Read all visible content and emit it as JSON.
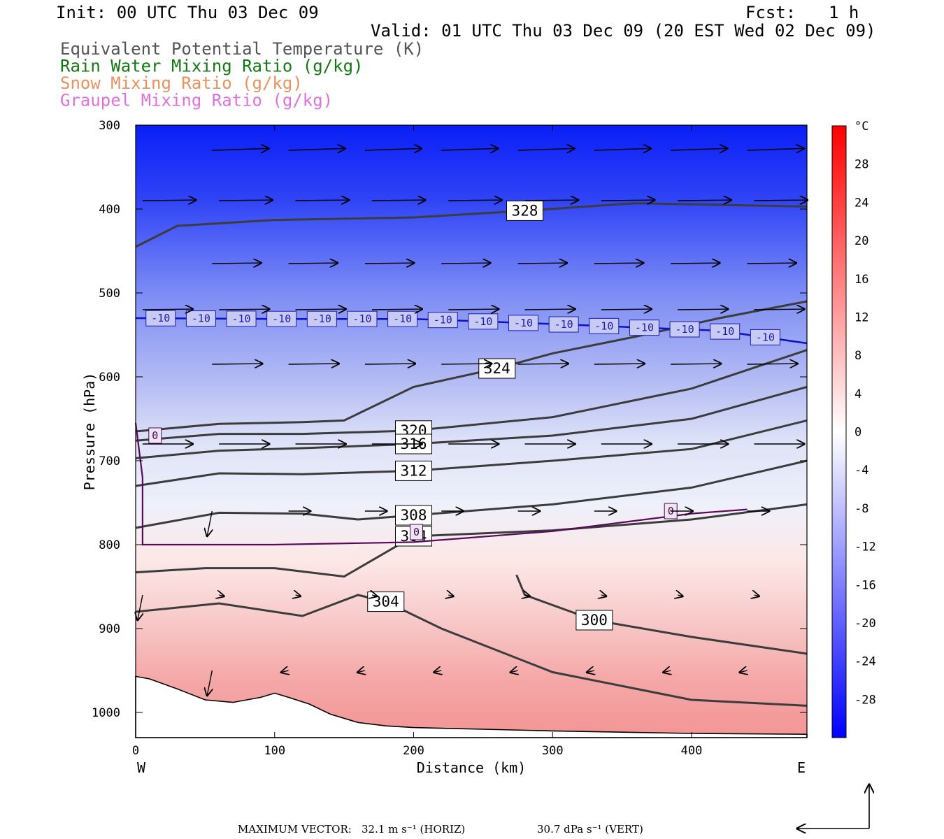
{
  "header": {
    "init": "Init: 00 UTC Thu 03 Dec 09",
    "fcst_label": "Fcst:",
    "fcst_value": "1 h",
    "valid": "Valid: 01 UTC Thu 03 Dec 09 (20 EST Wed 02 Dec 09)"
  },
  "legend": [
    {
      "text": "Equivalent Potential Temperature (K)",
      "color": "#555555"
    },
    {
      "text": "Rain Water Mixing Ratio (g/kg)",
      "color": "#127812"
    },
    {
      "text": "Snow Mixing Ratio (g/kg)",
      "color": "#e8915c"
    },
    {
      "text": "Graupel Mixing Ratio (g/kg)",
      "color": "#e070e0"
    }
  ],
  "colorbar": {
    "unit": "°C",
    "labels": [
      "28",
      "24",
      "20",
      "16",
      "12",
      "8",
      "4",
      "0",
      "-4",
      "-8",
      "-12",
      "-16",
      "-20",
      "-24",
      "-28"
    ]
  },
  "axes": {
    "xlabel": "Distance (km)",
    "ylabel": "Pressure (hPa)",
    "west": "W",
    "east": "E"
  },
  "footer": {
    "max_vector": "MAXIMUM VECTOR:",
    "horiz": "32.1 m s⁻¹ (HORIZ)",
    "vert": "30.7 dPa s⁻¹ (VERT)"
  },
  "chart_data": {
    "type": "heatmap",
    "x_ticks": [
      0,
      100,
      200,
      300,
      400
    ],
    "xlim": [
      0,
      483
    ],
    "y_ticks": [
      300,
      400,
      500,
      600,
      700,
      800,
      900,
      1000
    ],
    "ylim": [
      1030,
      300
    ],
    "colorbar_range": [
      -32,
      32
    ],
    "colormap": [
      "#0000ff",
      "#ffffff",
      "#ff0000"
    ],
    "theta_e_contours": [
      {
        "label": "328",
        "points": [
          [
            0,
            445
          ],
          [
            30,
            420
          ],
          [
            100,
            413
          ],
          [
            200,
            410
          ],
          [
            280,
            402
          ],
          [
            360,
            393
          ],
          [
            420,
            395
          ],
          [
            483,
            397
          ]
        ]
      },
      {
        "label": "324",
        "points": [
          [
            0,
            665
          ],
          [
            60,
            656
          ],
          [
            120,
            654
          ],
          [
            150,
            652
          ],
          [
            200,
            612
          ],
          [
            260,
            590
          ],
          [
            300,
            572
          ],
          [
            360,
            552
          ],
          [
            420,
            530
          ],
          [
            483,
            510
          ]
        ]
      },
      {
        "label": "320",
        "points": [
          [
            0,
            676
          ],
          [
            60,
            668
          ],
          [
            120,
            668
          ],
          [
            200,
            664
          ],
          [
            300,
            648
          ],
          [
            400,
            614
          ],
          [
            483,
            568
          ]
        ]
      },
      {
        "label": "316",
        "points": [
          [
            0,
            697
          ],
          [
            60,
            688
          ],
          [
            120,
            685
          ],
          [
            200,
            680
          ],
          [
            300,
            670
          ],
          [
            400,
            650
          ],
          [
            483,
            612
          ]
        ]
      },
      {
        "label": "312",
        "points": [
          [
            0,
            730
          ],
          [
            60,
            715
          ],
          [
            120,
            716
          ],
          [
            200,
            712
          ],
          [
            300,
            700
          ],
          [
            400,
            686
          ],
          [
            483,
            652
          ]
        ]
      },
      {
        "label": "308",
        "points": [
          [
            0,
            780
          ],
          [
            60,
            762
          ],
          [
            120,
            763
          ],
          [
            160,
            770
          ],
          [
            200,
            765
          ],
          [
            300,
            752
          ],
          [
            400,
            732
          ],
          [
            483,
            700
          ]
        ]
      },
      {
        "label": "304",
        "points": [
          [
            0,
            833
          ],
          [
            50,
            828
          ],
          [
            100,
            828
          ],
          [
            150,
            838
          ],
          [
            200,
            790
          ],
          [
            300,
            783
          ],
          [
            400,
            770
          ],
          [
            483,
            752
          ]
        ]
      },
      {
        "label": "300",
        "points": [
          [
            274,
            836
          ],
          [
            280,
            860
          ],
          [
            330,
            890
          ],
          [
            400,
            910
          ],
          [
            483,
            930
          ]
        ]
      },
      {
        "label": "304",
        "points": [
          [
            0,
            880
          ],
          [
            60,
            870
          ],
          [
            120,
            885
          ],
          [
            160,
            860
          ],
          [
            180,
            868
          ],
          [
            220,
            900
          ],
          [
            300,
            952
          ],
          [
            400,
            985
          ],
          [
            483,
            992
          ]
        ]
      }
    ],
    "isotherm_-10": {
      "label": "-10",
      "points": [
        [
          0,
          530
        ],
        [
          100,
          531
        ],
        [
          200,
          531
        ],
        [
          300,
          537
        ],
        [
          360,
          541
        ],
        [
          420,
          545
        ],
        [
          483,
          560
        ]
      ]
    },
    "isotherm_0": {
      "label": "0",
      "points": [
        [
          0,
          655
        ],
        [
          5,
          720
        ],
        [
          5,
          800
        ],
        [
          100,
          800
        ],
        [
          200,
          797
        ],
        [
          300,
          784
        ],
        [
          400,
          763
        ],
        [
          440,
          758
        ]
      ]
    },
    "max_vector_horiz": 32.1,
    "max_vector_vert": 30.7
  }
}
